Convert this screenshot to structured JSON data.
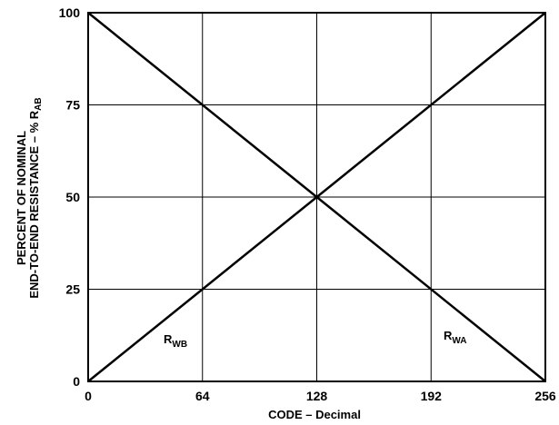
{
  "chart_data": {
    "type": "line",
    "xlabel": "CODE – Decimal",
    "ylabel": {
      "line1": "PERCENT OF NOMINAL",
      "line2_prefix": "END-TO-END RESISTANCE – % R",
      "line2_sub": "AB"
    },
    "xlim": [
      0,
      256
    ],
    "ylim": [
      0,
      100
    ],
    "x_ticks": [
      0,
      64,
      128,
      192,
      256
    ],
    "y_ticks": [
      0,
      25,
      50,
      75,
      100
    ],
    "grid": true,
    "series": [
      {
        "name": "R_WB",
        "label_main": "R",
        "label_sub": "WB",
        "x": [
          0,
          256
        ],
        "y": [
          0,
          100
        ]
      },
      {
        "name": "R_WA",
        "label_main": "R",
        "label_sub": "WA",
        "x": [
          0,
          256
        ],
        "y": [
          100,
          0
        ]
      }
    ]
  }
}
